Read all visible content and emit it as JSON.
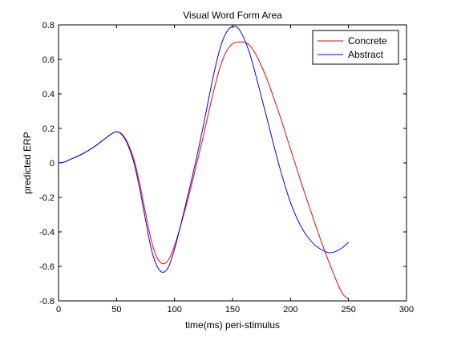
{
  "chart_data": {
    "type": "line",
    "title": "Visual Word Form Area",
    "xlabel": "time(ms) peri-stimulus",
    "ylabel": "predicted ERP",
    "xlim": [
      0,
      300
    ],
    "ylim": [
      -0.8,
      0.8
    ],
    "xticks": [
      0,
      50,
      100,
      150,
      200,
      250,
      300
    ],
    "xtick_labels": [
      "0",
      "50",
      "100",
      "150",
      "200",
      "250",
      "300"
    ],
    "yticks": [
      -0.8,
      -0.6,
      -0.4,
      -0.2,
      0,
      0.2,
      0.4,
      0.6,
      0.8
    ],
    "ytick_labels": [
      "-0.8",
      "-0.6",
      "-0.4",
      "-0.2",
      "0",
      "0.2",
      "0.4",
      "0.6",
      "0.8"
    ],
    "grid": false,
    "legend_position": "top-right",
    "series": [
      {
        "name": "Concrete",
        "color": "#ff0000",
        "x": [
          0,
          5,
          10,
          20,
          30,
          40,
          45,
          50,
          55,
          60,
          65,
          70,
          75,
          80,
          85,
          90,
          95,
          100,
          105,
          110,
          115,
          120,
          125,
          130,
          135,
          140,
          145,
          150,
          155,
          160,
          165,
          170,
          175,
          180,
          190,
          200,
          210,
          220,
          230,
          240,
          245,
          250
        ],
        "y": [
          0,
          0.005,
          0.02,
          0.05,
          0.09,
          0.14,
          0.165,
          0.18,
          0.165,
          0.11,
          0.02,
          -0.12,
          -0.29,
          -0.45,
          -0.55,
          -0.585,
          -0.56,
          -0.48,
          -0.37,
          -0.25,
          -0.12,
          0.02,
          0.16,
          0.31,
          0.45,
          0.57,
          0.65,
          0.69,
          0.7,
          0.7,
          0.68,
          0.63,
          0.56,
          0.48,
          0.29,
          0.08,
          -0.13,
          -0.33,
          -0.52,
          -0.69,
          -0.76,
          -0.79
        ]
      },
      {
        "name": "Abstract",
        "color": "#0000ff",
        "x": [
          0,
          5,
          10,
          20,
          30,
          40,
          45,
          50,
          55,
          60,
          65,
          70,
          75,
          80,
          85,
          90,
          95,
          100,
          105,
          110,
          115,
          120,
          125,
          130,
          135,
          140,
          145,
          150,
          155,
          160,
          165,
          170,
          175,
          180,
          190,
          200,
          210,
          220,
          230,
          235,
          240,
          245,
          250
        ],
        "y": [
          0,
          0.005,
          0.02,
          0.05,
          0.09,
          0.14,
          0.165,
          0.18,
          0.16,
          0.1,
          0.0,
          -0.15,
          -0.33,
          -0.5,
          -0.6,
          -0.635,
          -0.6,
          -0.5,
          -0.37,
          -0.23,
          -0.09,
          0.06,
          0.22,
          0.39,
          0.55,
          0.68,
          0.76,
          0.79,
          0.78,
          0.72,
          0.63,
          0.51,
          0.38,
          0.25,
          -0.01,
          -0.23,
          -0.38,
          -0.47,
          -0.515,
          -0.52,
          -0.51,
          -0.49,
          -0.46
        ]
      }
    ]
  }
}
